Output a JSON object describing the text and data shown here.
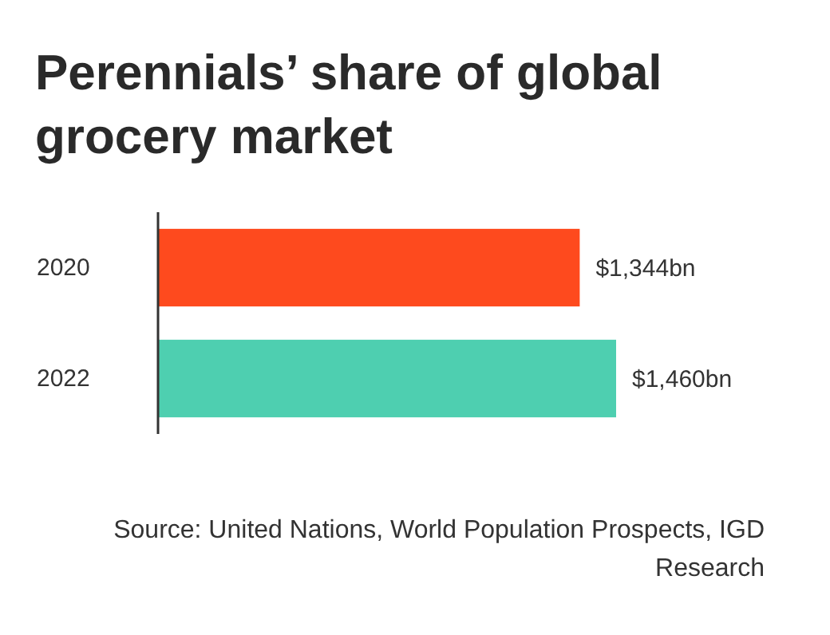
{
  "chart_data": {
    "type": "bar",
    "orientation": "horizontal",
    "title": "Perennials’ share of global grocery market",
    "categories": [
      "2020",
      "2022"
    ],
    "values": [
      1344,
      1460
    ],
    "colors": [
      "#fe4a1e",
      "#4ecfb0"
    ],
    "value_labels": [
      "$1,344bn",
      "$1,460bn"
    ],
    "tick_labels": "y",
    "annotations": [
      "Source: United Nations, World Population Prospects, IGD Research"
    ]
  }
}
